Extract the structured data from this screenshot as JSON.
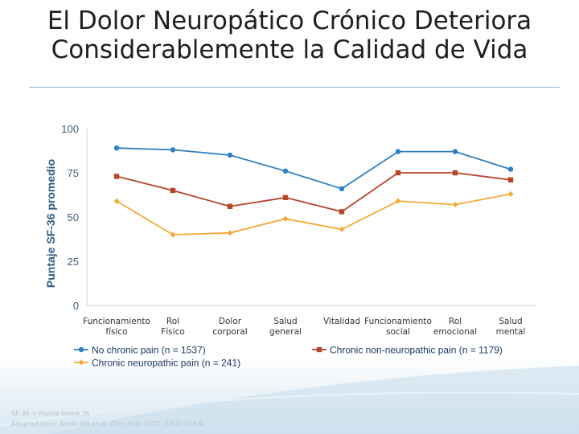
{
  "slide": {
    "title": "El Dolor Neuropático Crónico Deteriora Considerablemente la Calidad de Vida",
    "footnote_line1": "SF-36 = Forma breve 36",
    "footnote_line2_prefix": "Adapted from: Smith BH ",
    "footnote_line2_italic": "et al. Clin J Pain",
    "footnote_line2_suffix": " 2007; 23(2):143-9.",
    "colors": {
      "background": "#ffffff",
      "rule": "#8fb6d6"
    }
  },
  "chart_data": {
    "type": "line",
    "title": "",
    "xlabel": "",
    "ylabel": "Puntaje SF-36 promedio",
    "ylim": [
      0,
      100
    ],
    "yticks": [
      "0",
      "25",
      "50",
      "75",
      "100"
    ],
    "categories": [
      [
        "Funcionamiento",
        "físico"
      ],
      [
        "Rol",
        "Físico"
      ],
      [
        "Dolor",
        "corporal"
      ],
      [
        "Salud",
        "general"
      ],
      [
        "Vitalidad"
      ],
      [
        "Funcionamiento",
        "social"
      ],
      [
        "Rol",
        "emocional"
      ],
      [
        "Salud",
        "mental"
      ]
    ],
    "series": [
      {
        "name": "No chronic pain (n = 1537)",
        "marker": "circle",
        "color": "#2e7fbf",
        "values": [
          89,
          88,
          85,
          76,
          66,
          87,
          87,
          77
        ]
      },
      {
        "name": "Chronic non-neuropathic pain (n = 1179)",
        "marker": "square",
        "color": "#b5462a",
        "values": [
          73,
          65,
          56,
          61,
          53,
          75,
          75,
          71
        ]
      },
      {
        "name": "Chronic neuropathic pain (n = 241)",
        "marker": "diamond",
        "color": "#f3a93a",
        "values": [
          59,
          40,
          41,
          49,
          43,
          59,
          57,
          63
        ]
      }
    ]
  }
}
